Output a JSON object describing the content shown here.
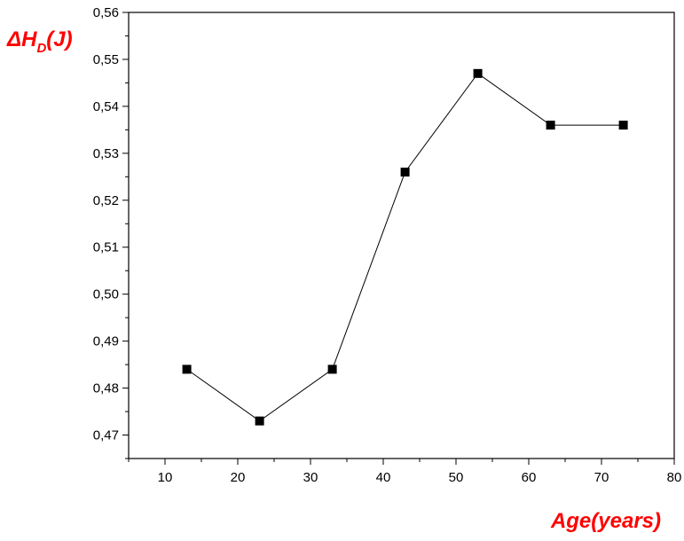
{
  "chart_data": {
    "type": "line",
    "title": "",
    "xlabel": "Age(years)",
    "ylabel": {
      "prefix": "ΔH",
      "subscript": "D",
      "suffix": "(J)"
    },
    "xlim": [
      5,
      80
    ],
    "ylim": [
      0.465,
      0.56
    ],
    "x_ticks": [
      10,
      20,
      30,
      40,
      50,
      60,
      70,
      80
    ],
    "x_tick_labels": [
      "10",
      "20",
      "30",
      "40",
      "50",
      "60",
      "70",
      "80"
    ],
    "y_ticks": [
      0.47,
      0.48,
      0.49,
      0.5,
      0.51,
      0.52,
      0.53,
      0.54,
      0.55,
      0.56
    ],
    "y_tick_labels": [
      "0,47",
      "0,48",
      "0,49",
      "0,50",
      "0,51",
      "0,52",
      "0,53",
      "0,54",
      "0,55",
      "0,56"
    ],
    "grid": false,
    "legend": "none",
    "series": [
      {
        "x": [
          13,
          23,
          33,
          43,
          53,
          63,
          73
        ],
        "y": [
          0.484,
          0.473,
          0.484,
          0.526,
          0.547,
          0.536,
          0.536
        ],
        "marker": "square",
        "color": "#000000"
      }
    ],
    "label_color": "#ff0000"
  }
}
